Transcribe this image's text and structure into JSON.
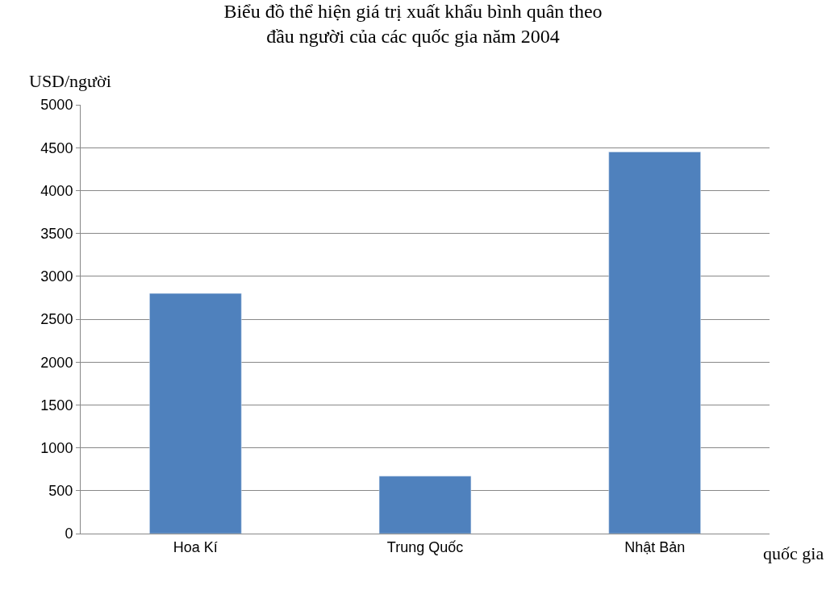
{
  "chart_data": {
    "type": "bar",
    "title": "Biểu đồ thể hiện giá trị xuất khẩu bình quân theo đầu người của các quốc gia năm 2004",
    "xlabel": "quốc gia",
    "ylabel": "USD/người",
    "categories": [
      "Hoa Kí",
      "Trung Quốc",
      "Nhật Bản"
    ],
    "values": [
      2800,
      670,
      4450
    ],
    "color": "#4f81bd",
    "ylim": [
      0,
      5000
    ],
    "yticks": [
      0,
      500,
      1000,
      1500,
      2000,
      2500,
      3000,
      3500,
      4000,
      4500,
      5000
    ],
    "grid": "y",
    "legend": false
  }
}
